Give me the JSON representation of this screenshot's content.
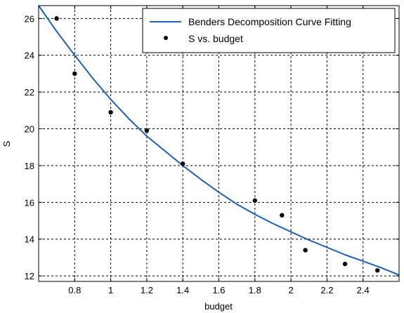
{
  "chart_data": {
    "type": "scatter",
    "title": "",
    "xlabel": "budget",
    "ylabel": "S",
    "xlim": [
      0.6,
      2.6
    ],
    "ylim": [
      11.7,
      26.7
    ],
    "xticks": [
      0.8,
      1,
      1.2,
      1.4,
      1.6,
      1.8,
      2,
      2.2,
      2.4
    ],
    "xtick_labels": [
      "0.8",
      "1",
      "1.2",
      "1.4",
      "1.6",
      "1.8",
      "2",
      "2.2",
      "2.4"
    ],
    "yticks": [
      12,
      14,
      16,
      18,
      20,
      22,
      24,
      26
    ],
    "ytick_labels": [
      "12",
      "14",
      "16",
      "18",
      "20",
      "22",
      "24",
      "26"
    ],
    "grid": true,
    "grid_style": "dashed",
    "legend_position": "top-right",
    "series": [
      {
        "name": "Benders Decomposition Curve Fitting",
        "kind": "line",
        "color": "#1f5fb4",
        "x": [
          0.6,
          0.7,
          0.8,
          0.9,
          1.0,
          1.1,
          1.2,
          1.3,
          1.4,
          1.5,
          1.6,
          1.7,
          1.8,
          1.9,
          2.0,
          2.1,
          2.2,
          2.3,
          2.4,
          2.5,
          2.6
        ],
        "y": [
          26.7,
          25.3,
          24.0,
          22.75,
          21.6,
          20.55,
          19.6,
          18.8,
          18.0,
          17.25,
          16.55,
          15.9,
          15.35,
          14.85,
          14.4,
          13.95,
          13.55,
          13.15,
          12.8,
          12.45,
          12.05
        ]
      },
      {
        "name": "S vs. budget",
        "kind": "scatter",
        "color": "#000000",
        "x": [
          0.7,
          0.8,
          1.0,
          1.2,
          1.4,
          1.8,
          1.95,
          2.08,
          2.3,
          2.48
        ],
        "y": [
          26.0,
          23.0,
          20.9,
          19.9,
          18.1,
          16.1,
          15.3,
          13.4,
          12.65,
          12.3
        ]
      }
    ]
  }
}
